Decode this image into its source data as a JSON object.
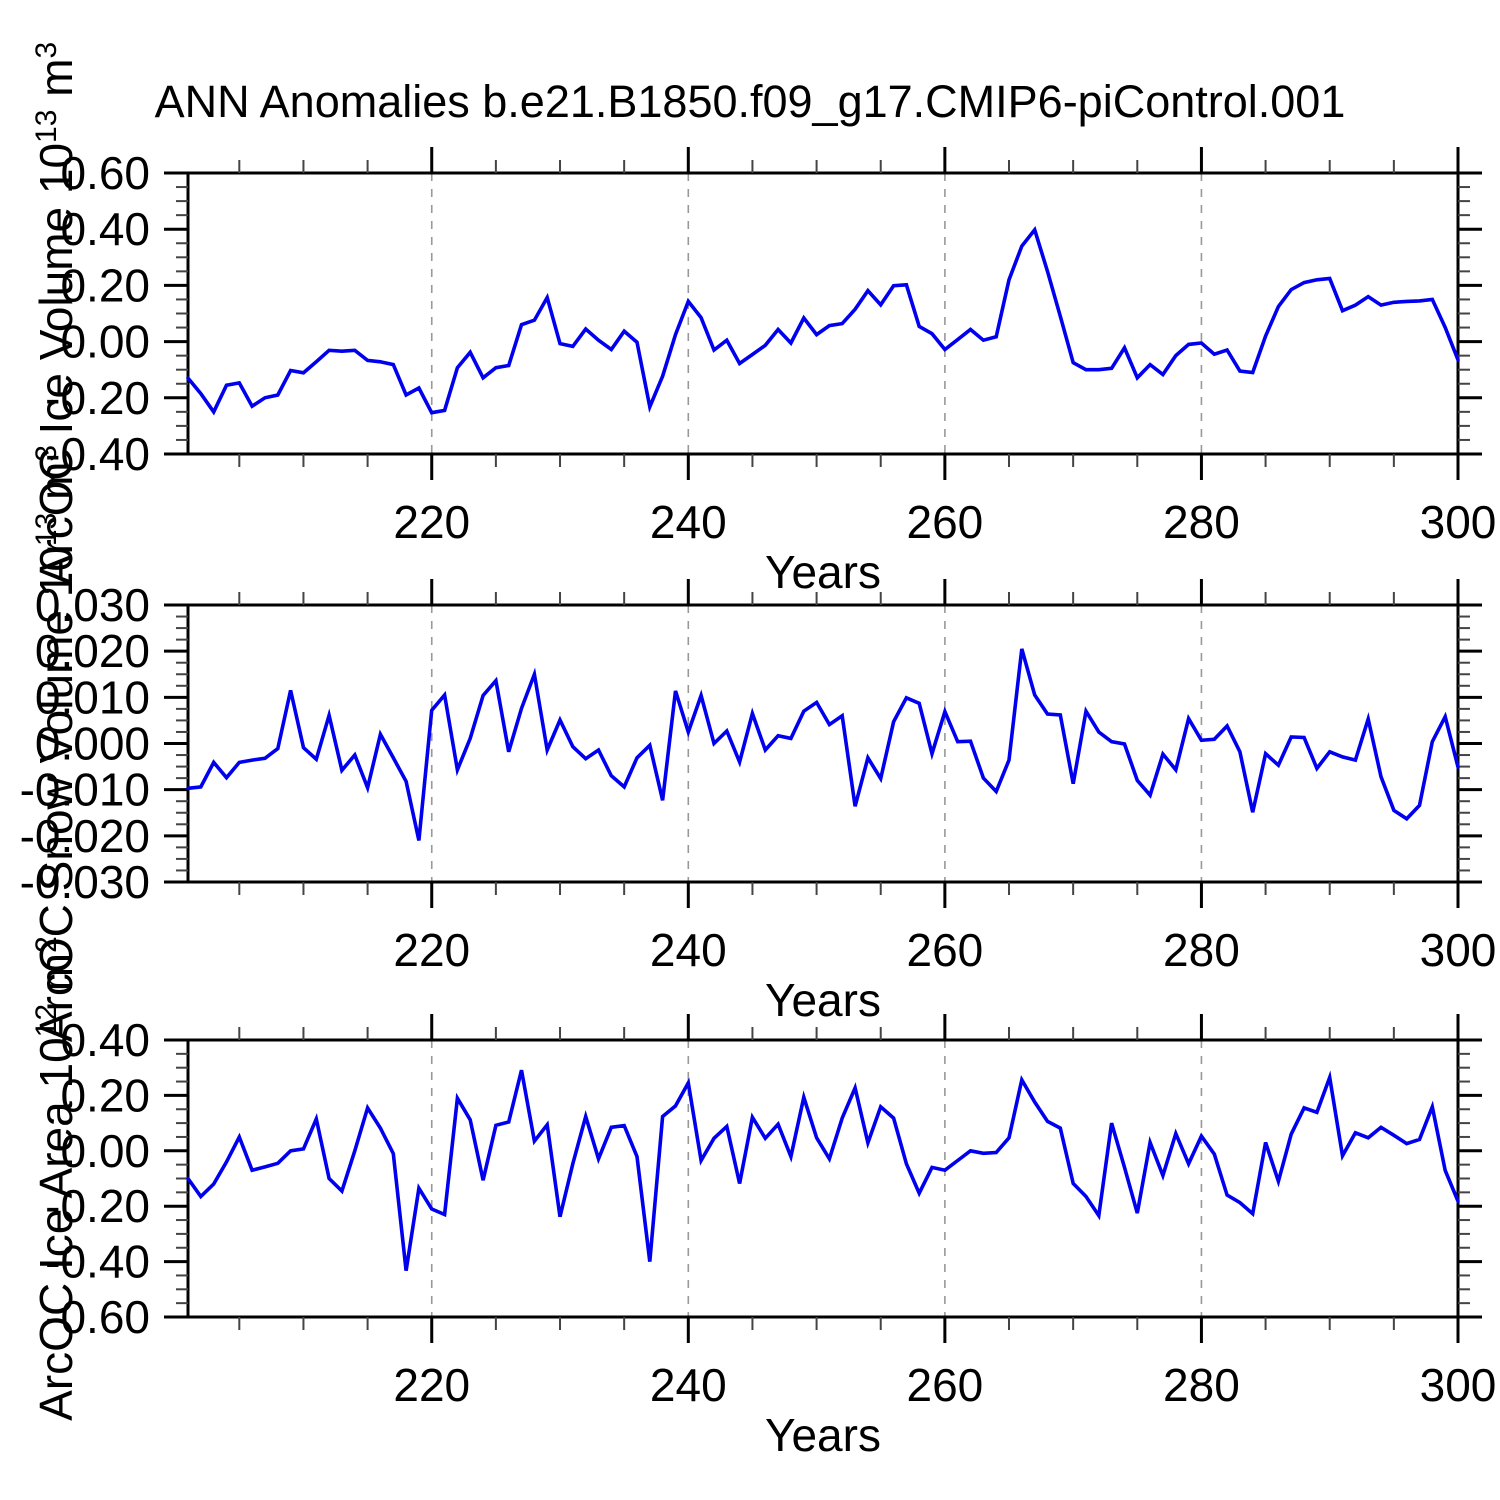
{
  "title": "ANN Anomalies b.e21.B1850.f09_g17.CMIP6-piControl.001",
  "chart_data": [
    {
      "type": "line",
      "panel": "arcoc-ice-volume",
      "ylabel_plain": "ArcOC Ice Volume 10^13 m^3",
      "ylabel_segments": [
        {
          "text": "ArcOC Ice Volume 10"
        },
        {
          "text": "13",
          "sup": true
        },
        {
          "text": " m"
        },
        {
          "text": "3",
          "sup": true
        }
      ],
      "xlabel": "Years",
      "ylim": [
        -0.4,
        0.6
      ],
      "y_major_step": 0.2,
      "y_minor_step": 0.05,
      "y_tick_labels": [
        "0.60",
        "0.40",
        "0.20",
        "0.00",
        "-0.20",
        "-0.40"
      ],
      "x_start": 201,
      "x_end": 300,
      "x_major_ticks": [
        220,
        240,
        260,
        280,
        300
      ],
      "x_major_tick_labels": [
        "220",
        "240",
        "260",
        "280",
        "300"
      ],
      "x_minor_step": 5,
      "grid_years": [
        220,
        240,
        260,
        280
      ],
      "line_color": "#0000EE",
      "grid_on": true,
      "values": [
        -0.13,
        -0.185,
        -0.25,
        -0.155,
        -0.147,
        -0.23,
        -0.2,
        -0.19,
        -0.103,
        -0.111,
        -0.072,
        -0.031,
        -0.034,
        -0.031,
        -0.067,
        -0.072,
        -0.082,
        -0.19,
        -0.165,
        -0.253,
        -0.245,
        -0.093,
        -0.038,
        -0.129,
        -0.093,
        -0.085,
        0.06,
        0.076,
        0.157,
        -0.007,
        -0.017,
        0.045,
        0.005,
        -0.028,
        0.037,
        -0.002,
        -0.232,
        -0.123,
        0.025,
        0.143,
        0.085,
        -0.03,
        0.005,
        -0.078,
        -0.046,
        -0.013,
        0.043,
        -0.005,
        0.084,
        0.025,
        0.057,
        0.064,
        0.115,
        0.181,
        0.131,
        0.199,
        0.202,
        0.054,
        0.028,
        -0.028,
        0.007,
        0.043,
        0.005,
        0.017,
        0.22,
        0.34,
        0.398,
        0.25,
        0.09,
        -0.075,
        -0.1,
        -0.1,
        -0.095,
        -0.022,
        -0.129,
        -0.082,
        -0.117,
        -0.05,
        -0.01,
        -0.005,
        -0.045,
        -0.03,
        -0.105,
        -0.11,
        0.02,
        0.125,
        0.185,
        0.21,
        0.22,
        0.225,
        0.11,
        0.13,
        0.16,
        0.13,
        0.14,
        0.143,
        0.145,
        0.15,
        0.05,
        -0.065
      ]
    },
    {
      "type": "line",
      "panel": "arcoc-snow-volume",
      "ylabel_plain": "ArcOC Snow Volume 10^13 m^3",
      "ylabel_segments": [
        {
          "text": "ArcOC Snow Volume 10"
        },
        {
          "text": "13",
          "sup": true
        },
        {
          "text": " m"
        },
        {
          "text": "3",
          "sup": true
        }
      ],
      "xlabel": "Years",
      "ylim": [
        -0.03,
        0.03
      ],
      "y_major_step": 0.01,
      "y_minor_step": 0.0025,
      "y_tick_labels": [
        "0.030",
        "0.020",
        "0.010",
        "0.000",
        "-0.010",
        "-0.020",
        "-0.030"
      ],
      "x_start": 201,
      "x_end": 300,
      "x_major_ticks": [
        220,
        240,
        260,
        280,
        300
      ],
      "x_major_tick_labels": [
        "220",
        "240",
        "260",
        "280",
        "300"
      ],
      "x_minor_step": 5,
      "grid_years": [
        220,
        240,
        260,
        280
      ],
      "line_color": "#0000EE",
      "grid_on": true,
      "values": [
        -0.0097,
        -0.0094,
        -0.0041,
        -0.0074,
        -0.0041,
        -0.0036,
        -0.0032,
        -0.0011,
        0.0115,
        -0.0009,
        -0.0034,
        0.0061,
        -0.0058,
        -0.0025,
        -0.0096,
        0.002,
        -0.0031,
        -0.0082,
        -0.021,
        0.0072,
        0.0105,
        -0.0057,
        0.0011,
        0.0104,
        0.0136,
        -0.0018,
        0.0076,
        0.015,
        -0.0014,
        0.0051,
        -0.0007,
        -0.0033,
        -0.0014,
        -0.007,
        -0.0094,
        -0.0031,
        -0.0004,
        -0.0123,
        0.0114,
        0.0025,
        0.0104,
        0.0,
        0.0027,
        -0.004,
        0.0065,
        -0.0014,
        0.0017,
        0.0011,
        0.007,
        0.0089,
        0.0041,
        0.006,
        -0.0136,
        -0.0031,
        -0.0076,
        0.0047,
        0.0099,
        0.0087,
        -0.0022,
        0.0069,
        0.0004,
        0.0005,
        -0.0075,
        -0.0104,
        -0.0036,
        0.0205,
        0.0105,
        0.0064,
        0.0062,
        -0.0087,
        0.007,
        0.0025,
        0.0004,
        -0.0001,
        -0.008,
        -0.0112,
        -0.0023,
        -0.0057,
        0.0054,
        0.0007,
        0.0009,
        0.0038,
        -0.0018,
        -0.0149,
        -0.0022,
        -0.0047,
        0.0014,
        0.0013,
        -0.0054,
        -0.0018,
        -0.0029,
        -0.0036,
        0.0053,
        -0.0072,
        -0.0145,
        -0.0163,
        -0.0134,
        0.0004,
        0.0058,
        -0.0051
      ]
    },
    {
      "type": "line",
      "panel": "arcoc-ice-area",
      "ylabel_plain": "ArcOC Ice Area 10^12 m^2",
      "ylabel_segments": [
        {
          "text": "ArcOC Ice Area 10"
        },
        {
          "text": "12",
          "sup": true
        },
        {
          "text": " m"
        },
        {
          "text": "2",
          "sup": true
        }
      ],
      "xlabel": "Years",
      "ylim": [
        -0.6,
        0.4
      ],
      "y_major_step": 0.2,
      "y_minor_step": 0.05,
      "y_tick_labels": [
        "0.40",
        "0.20",
        "0.00",
        "-0.20",
        "-0.40",
        "-0.60"
      ],
      "x_start": 201,
      "x_end": 300,
      "x_major_ticks": [
        220,
        240,
        260,
        280,
        300
      ],
      "x_major_tick_labels": [
        "220",
        "240",
        "260",
        "280",
        "300"
      ],
      "x_minor_step": 5,
      "grid_years": [
        220,
        240,
        260,
        280
      ],
      "line_color": "#0000EE",
      "grid_on": true,
      "values": [
        -0.1,
        -0.165,
        -0.12,
        -0.04,
        0.05,
        -0.07,
        -0.058,
        -0.045,
        0.0,
        0.007,
        0.115,
        -0.1,
        -0.145,
        0.0,
        0.155,
        0.082,
        -0.01,
        -0.433,
        -0.135,
        -0.21,
        -0.23,
        0.19,
        0.112,
        -0.106,
        0.092,
        0.104,
        0.291,
        0.035,
        0.094,
        -0.238,
        -0.047,
        0.124,
        -0.029,
        0.085,
        0.091,
        -0.021,
        -0.4,
        0.124,
        0.162,
        0.245,
        -0.035,
        0.045,
        0.088,
        -0.118,
        0.121,
        0.045,
        0.096,
        -0.021,
        0.193,
        0.047,
        -0.029,
        0.118,
        0.227,
        0.029,
        0.159,
        0.118,
        -0.047,
        -0.153,
        -0.06,
        -0.07,
        -0.035,
        0.0,
        -0.009,
        -0.006,
        0.047,
        0.256,
        0.176,
        0.106,
        0.082,
        -0.118,
        -0.165,
        -0.234,
        0.1,
        -0.06,
        -0.225,
        0.03,
        -0.089,
        0.062,
        -0.047,
        0.053,
        -0.012,
        -0.16,
        -0.187,
        -0.227,
        0.03,
        -0.11,
        0.06,
        0.155,
        0.139,
        0.265,
        -0.018,
        0.065,
        0.047,
        0.085,
        0.056,
        0.026,
        0.041,
        0.159,
        -0.071,
        -0.182
      ]
    }
  ]
}
